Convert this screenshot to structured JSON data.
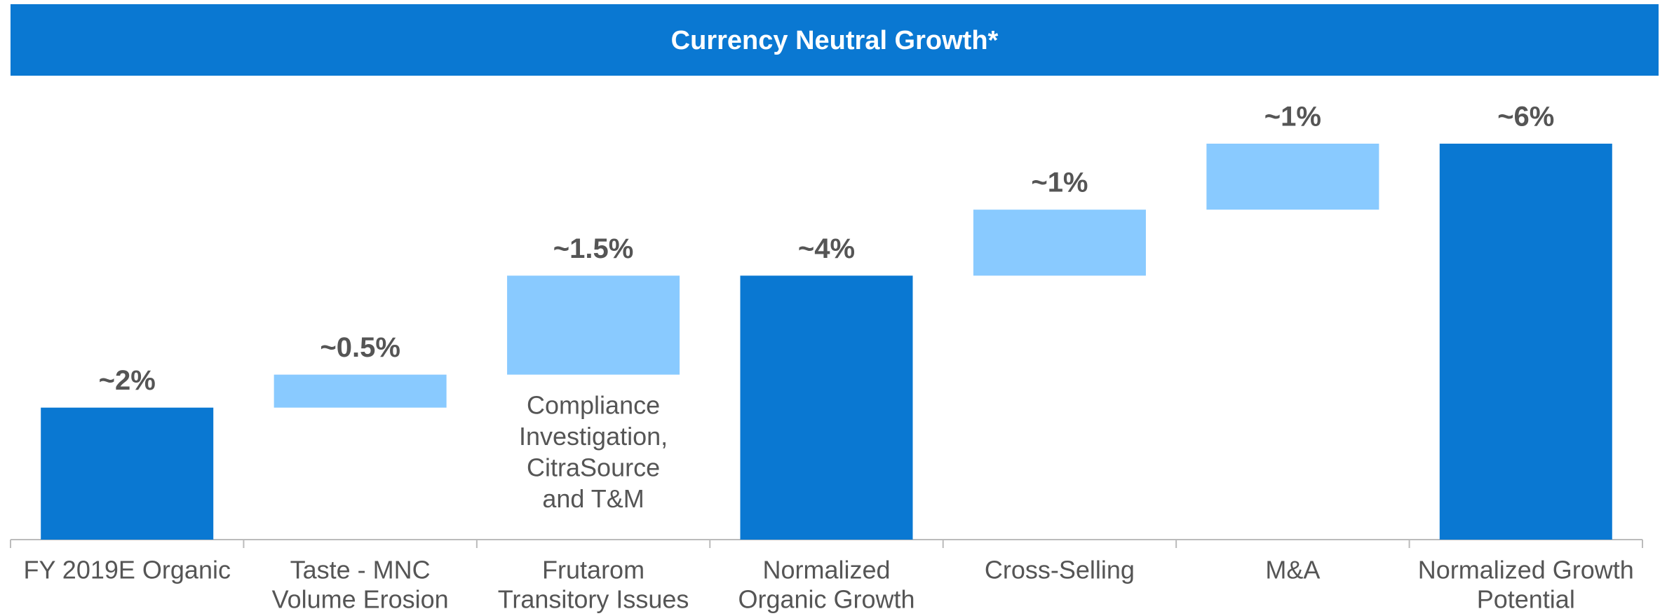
{
  "chart_data": {
    "type": "waterfall",
    "title": "Currency Neutral Growth*",
    "categories": [
      [
        "FY 2019E Organic"
      ],
      [
        "Taste - MNC",
        "Volume Erosion"
      ],
      [
        "Frutarom",
        "Transitory Issues"
      ],
      [
        "Normalized",
        "Organic Growth"
      ],
      [
        "Cross-Selling"
      ],
      [
        "M&A"
      ],
      [
        "Normalized Growth",
        "Potential"
      ]
    ],
    "values": [
      2,
      0.5,
      1.5,
      4,
      1,
      1,
      6
    ],
    "value_labels": [
      "~2%",
      "~0.5%",
      "~1.5%",
      "~4%",
      "~1%",
      "~1%",
      "~6%"
    ],
    "is_total": [
      true,
      false,
      false,
      true,
      false,
      false,
      true
    ],
    "colors": [
      "#0a78d2",
      "#89caff",
      "#89caff",
      "#0a78d2",
      "#89caff",
      "#89caff",
      "#0a78d2"
    ],
    "ylim": [
      0,
      6
    ],
    "annotations": [
      {
        "category": 2,
        "lines": [
          "Compliance",
          "Investigation,",
          "CitraSource",
          "and T&M"
        ]
      }
    ]
  }
}
